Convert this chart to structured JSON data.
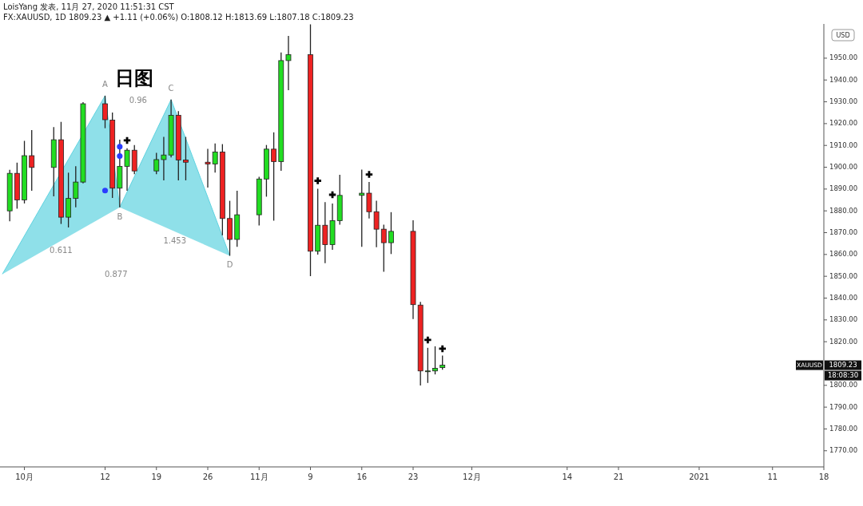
{
  "chart_data": {
    "type": "candlestick",
    "title": "日图",
    "subtitle": "FX:XAUUSD, 1D 1809.23 ▲ +1.11 (+0.06%) O:1808.12 H:1813.69 L:1807.18 C:1809.23",
    "x": [
      "2020-09-29",
      "2020-09-30",
      "2020-10-01",
      "2020-10-02",
      "2020-10-05",
      "2020-10-06",
      "2020-10-07",
      "2020-10-08",
      "2020-10-09",
      "2020-10-12",
      "2020-10-13",
      "2020-10-14",
      "2020-10-15",
      "2020-10-16",
      "2020-10-19",
      "2020-10-20",
      "2020-10-21",
      "2020-10-22",
      "2020-10-23",
      "2020-10-26",
      "2020-10-27",
      "2020-10-28",
      "2020-10-29",
      "2020-10-30",
      "2020-11-02",
      "2020-11-03",
      "2020-11-04",
      "2020-11-05",
      "2020-11-06",
      "2020-11-09",
      "2020-11-10",
      "2020-11-11",
      "2020-11-12",
      "2020-11-13",
      "2020-11-16",
      "2020-11-17",
      "2020-11-18",
      "2020-11-19",
      "2020-11-20",
      "2020-11-23",
      "2020-11-24",
      "2020-11-25",
      "2020-11-26",
      "2020-11-27"
    ],
    "ohlc": [
      [
        1880,
        1898.8,
        1875.2,
        1897.2
      ],
      [
        1897.2,
        1902.1,
        1881,
        1885
      ],
      [
        1885,
        1912.1,
        1883.4,
        1905.3
      ],
      [
        1905.3,
        1917,
        1889.2,
        1899.9
      ],
      [
        1899.9,
        1918.4,
        1886.7,
        1912.6
      ],
      [
        1912.6,
        1920.8,
        1874,
        1877.1
      ],
      [
        1877.1,
        1897.5,
        1872.4,
        1885.7
      ],
      [
        1885.7,
        1900.5,
        1881.6,
        1893.2
      ],
      [
        1893.2,
        1929.8,
        1892.6,
        1929.1
      ],
      [
        1929.1,
        1932.8,
        1917.9,
        1921.8
      ],
      [
        1921.6,
        1925.1,
        1885.9,
        1890.4
      ],
      [
        1890.4,
        1912.6,
        1881.6,
        1900.4
      ],
      [
        1900.4,
        1908.7,
        1889.2,
        1907.8
      ],
      [
        1907.8,
        1910.2,
        1896.8,
        1898.3
      ],
      [
        1898.3,
        1906.6,
        1896.8,
        1903.5
      ],
      [
        1903.5,
        1913.9,
        1894,
        1905.6
      ],
      [
        1905.6,
        1931,
        1904.5,
        1923.8
      ],
      [
        1923.8,
        1925.7,
        1894,
        1903.3
      ],
      [
        1903.3,
        1913.9,
        1894,
        1902.3
      ],
      [
        1902.3,
        1908.4,
        1890.7,
        1901.5
      ],
      [
        1901.5,
        1910.9,
        1897.5,
        1907
      ],
      [
        1907,
        1910.6,
        1868.8,
        1876.5
      ],
      [
        1876.5,
        1884.6,
        1859.4,
        1866.9
      ],
      [
        1866.9,
        1889.2,
        1863.5,
        1878.2
      ],
      [
        1878.2,
        1895.6,
        1873.3,
        1894.6
      ],
      [
        1894.6,
        1910.2,
        1886.5,
        1908.3
      ],
      [
        1908.3,
        1916,
        1875.5,
        1902.6
      ],
      [
        1902.6,
        1952.6,
        1898.4,
        1948.9
      ],
      [
        1948.9,
        1960.2,
        1935.3,
        1951.6
      ],
      [
        1951.6,
        1965.5,
        1850.1,
        1861.5
      ],
      [
        1861.5,
        1890.1,
        1859.9,
        1873.4
      ],
      [
        1873.4,
        1884,
        1856,
        1864.5
      ],
      [
        1864.5,
        1883.4,
        1862.1,
        1875.5
      ],
      [
        1875.5,
        1896.5,
        1873.7,
        1887.1
      ],
      [
        1887.1,
        1898.9,
        1863.5,
        1888.1
      ],
      [
        1888.1,
        1893.2,
        1876.5,
        1879.6
      ],
      [
        1879.6,
        1884.6,
        1863.3,
        1871.6
      ],
      [
        1871.6,
        1873.7,
        1852.1,
        1865.4
      ],
      [
        1865.4,
        1879.4,
        1860.2,
        1870.6
      ],
      [
        1870.6,
        1875.7,
        1830.4,
        1837
      ],
      [
        1836.8,
        1838.3,
        1799.9,
        1806.6
      ],
      [
        1806.6,
        1817.2,
        1801.1,
        1806.6
      ],
      [
        1806.6,
        1817.9,
        1805,
        1807.8
      ],
      [
        1808.12,
        1813.69,
        1807.18,
        1809.23
      ]
    ],
    "series": [
      {
        "type": "line",
        "color": "#5fd3e0",
        "x": [
          "2020-09-28",
          "2020-10-12",
          "2020-10-14",
          "2020-10-21",
          "2020-10-29"
        ],
        "values": [
          1851,
          1932.8,
          1881.6,
          1931,
          1859.4
        ]
      },
      {
        "type": "scatter",
        "marker": "cross",
        "color": "#000000",
        "x": [
          "2020-10-15",
          "2020-11-10",
          "2020-11-12",
          "2020-11-17",
          "2020-11-25",
          "2020-11-27"
        ],
        "values": [
          1912.3,
          1893.8,
          1887.4,
          1896.7,
          1820.8,
          1816.8
        ]
      },
      {
        "type": "scatter",
        "marker": "circle",
        "color": "#2a3cff",
        "x": [
          "2020-10-14",
          "2020-10-14",
          "2020-10-12"
        ],
        "values": [
          1909.4,
          1905.1,
          1889.3
        ]
      }
    ],
    "xlim": [
      "2020-09-28",
      "2021-01-18"
    ],
    "xticks": [
      {
        "value": "2020-10-01",
        "label": "10月"
      },
      {
        "value": "2020-10-12",
        "label": "12"
      },
      {
        "value": "2020-10-19",
        "label": "19"
      },
      {
        "value": "2020-10-26",
        "label": "26"
      },
      {
        "value": "2020-11-02",
        "label": "11月"
      },
      {
        "value": "2020-11-09",
        "label": "9"
      },
      {
        "value": "2020-11-16",
        "label": "16"
      },
      {
        "value": "2020-11-23",
        "label": "23"
      },
      {
        "value": "2020-12-01",
        "label": "12月"
      },
      {
        "value": "2020-12-14",
        "label": "14"
      },
      {
        "value": "2020-12-21",
        "label": "21"
      },
      {
        "value": "2021-01-01",
        "label": "2021"
      },
      {
        "value": "2021-01-11",
        "label": "11"
      },
      {
        "value": "2021-01-18",
        "label": "18"
      }
    ],
    "ylim": [
      1762.6,
      1965.7
    ],
    "yticks": [
      {
        "value": 1770,
        "label": "1770.00"
      },
      {
        "value": 1780,
        "label": "1780.00"
      },
      {
        "value": 1790,
        "label": "1790.00"
      },
      {
        "value": 1800,
        "label": "1800.00"
      },
      {
        "value": 1820,
        "label": "1820.00"
      },
      {
        "value": 1830,
        "label": "1830.00"
      },
      {
        "value": 1840,
        "label": "1840.00"
      },
      {
        "value": 1850,
        "label": "1850.00"
      },
      {
        "value": 1860,
        "label": "1860.00"
      },
      {
        "value": 1870,
        "label": "1870.00"
      },
      {
        "value": 1880,
        "label": "1880.00"
      },
      {
        "value": 1890,
        "label": "1890.00"
      },
      {
        "value": 1900,
        "label": "1900.00"
      },
      {
        "value": 1910,
        "label": "1910.00"
      },
      {
        "value": 1920,
        "label": "1920.00"
      },
      {
        "value": 1930,
        "label": "1930.00"
      },
      {
        "value": 1940,
        "label": "1940.00"
      },
      {
        "value": 1950,
        "label": "1950.00"
      }
    ],
    "annotations": [
      "LoisYang 发表, 11月 27, 2020 11:51:31 CST",
      "USD",
      "A",
      "B",
      "C",
      "D",
      "0.96",
      "0.611",
      "1.453",
      "0.877",
      "XAUUSD",
      "1809.23",
      "18:08:30"
    ]
  }
}
